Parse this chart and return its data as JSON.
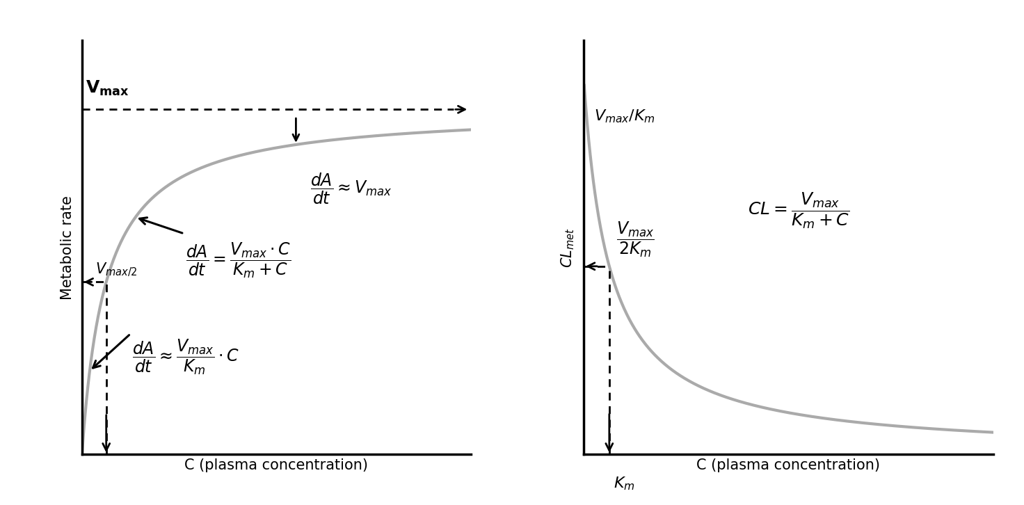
{
  "fig_width": 14.72,
  "fig_height": 7.26,
  "dpi": 100,
  "bg_color": "#ffffff",
  "curve_color": "#aaaaaa",
  "curve_lw": 3.0,
  "Vmax": 1.0,
  "Km": 0.25,
  "left_xlabel": "C (plasma concentration)",
  "left_ylabel": "Metabolic rate",
  "right_xlabel": "C (plasma concentration)",
  "right_ylabel": "CL$_\\mathrm{met}$",
  "text_fontsize": 16,
  "formula_fontsize": 17,
  "label_fontsize": 15
}
